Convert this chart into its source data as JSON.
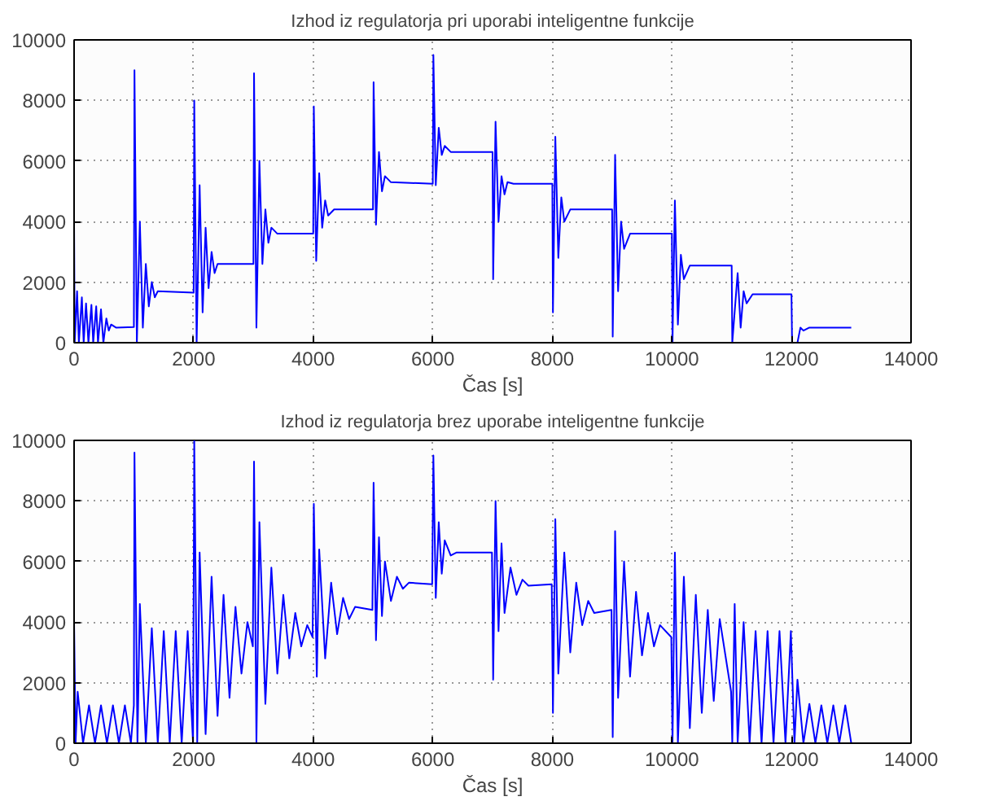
{
  "chart_data": [
    {
      "type": "line",
      "title": "Izhod iz regulatorja pri uporabi inteligentne funkcije",
      "xlabel": "Čas [s]",
      "xlim": [
        0,
        14000
      ],
      "ylim": [
        0,
        10000
      ],
      "xticks": [
        0,
        2000,
        4000,
        6000,
        8000,
        10000,
        12000,
        14000
      ],
      "yticks": [
        0,
        2000,
        4000,
        6000,
        8000,
        10000
      ],
      "grid": true,
      "line_style": "solid",
      "series": [
        {
          "color": "#0000ff",
          "x": [
            0,
            10,
            50,
            80,
            130,
            160,
            200,
            240,
            290,
            320,
            370,
            400,
            450,
            490,
            540,
            580,
            620,
            700,
            1000,
            1010,
            1050,
            1100,
            1150,
            1200,
            1250,
            1300,
            1350,
            1400,
            2000,
            2010,
            2050,
            2100,
            2150,
            2200,
            2250,
            2300,
            2350,
            2400,
            3000,
            3010,
            3050,
            3100,
            3150,
            3200,
            3250,
            3300,
            3400,
            4000,
            4010,
            4050,
            4100,
            4150,
            4200,
            4250,
            4350,
            5000,
            5010,
            5050,
            5100,
            5150,
            5200,
            5300,
            6000,
            6010,
            6050,
            6100,
            6150,
            6200,
            6300,
            7000,
            7010,
            7050,
            7100,
            7150,
            7200,
            7250,
            7350,
            8000,
            8010,
            8050,
            8100,
            8150,
            8200,
            8300,
            9000,
            9010,
            9050,
            9100,
            9150,
            9200,
            9300,
            10000,
            10010,
            10050,
            10100,
            10150,
            10200,
            10300,
            11000,
            11010,
            11100,
            11150,
            11200,
            11250,
            11350,
            12000,
            12010,
            12100,
            12150,
            12200,
            12300,
            13000
          ],
          "values": [
            4000,
            0,
            1700,
            0,
            1500,
            0,
            1300,
            0,
            1250,
            0,
            1200,
            0,
            1100,
            0,
            800,
            400,
            600,
            500,
            520,
            9000,
            0,
            4000,
            500,
            2600,
            1200,
            2000,
            1500,
            1700,
            1650,
            8000,
            0,
            5200,
            1000,
            3800,
            1800,
            3000,
            2300,
            2600,
            2600,
            8900,
            500,
            6000,
            2600,
            4400,
            3300,
            3800,
            3600,
            3600,
            7800,
            2700,
            5600,
            3800,
            4700,
            4200,
            4400,
            4400,
            8600,
            3900,
            6300,
            5000,
            5500,
            5300,
            5250,
            9500,
            5200,
            7100,
            6200,
            6500,
            6300,
            6300,
            2100,
            7300,
            4000,
            5500,
            4900,
            5300,
            5250,
            5250,
            1000,
            6800,
            2800,
            4800,
            4000,
            4400,
            4400,
            200,
            6200,
            1700,
            4000,
            3100,
            3600,
            3600,
            0,
            4700,
            600,
            2900,
            2100,
            2550,
            2550,
            0,
            2300,
            500,
            1700,
            1300,
            1600,
            1600,
            0,
            0,
            500,
            400,
            500,
            500
          ]
        }
      ]
    },
    {
      "type": "line",
      "title": "Izhod iz regulatorja brez uporabe inteligentne funkcije",
      "xlabel": "Čas [s]",
      "xlim": [
        0,
        14000
      ],
      "ylim": [
        0,
        10000
      ],
      "xticks": [
        0,
        2000,
        4000,
        6000,
        8000,
        10000,
        12000,
        14000
      ],
      "yticks": [
        0,
        2000,
        4000,
        6000,
        8000,
        10000
      ],
      "grid": true,
      "line_style": "solid",
      "series": [
        {
          "color": "#0000ff",
          "x": [
            0,
            25,
            60,
            150,
            250,
            350,
            450,
            550,
            650,
            750,
            850,
            950,
            1000,
            1010,
            1060,
            1100,
            1200,
            1300,
            1400,
            1500,
            1600,
            1700,
            1800,
            1900,
            1990,
            2010,
            2060,
            2100,
            2200,
            2300,
            2400,
            2500,
            2600,
            2700,
            2800,
            2900,
            2990,
            3010,
            3050,
            3100,
            3200,
            3300,
            3400,
            3500,
            3600,
            3700,
            3800,
            3900,
            3990,
            4010,
            4060,
            4100,
            4200,
            4300,
            4400,
            4500,
            4600,
            4700,
            4990,
            5010,
            5050,
            5100,
            5150,
            5200,
            5300,
            5400,
            5500,
            5600,
            5990,
            6010,
            6050,
            6100,
            6150,
            6200,
            6300,
            6400,
            6990,
            7010,
            7050,
            7100,
            7150,
            7200,
            7300,
            7400,
            7500,
            7600,
            7990,
            8010,
            8050,
            8100,
            8200,
            8300,
            8400,
            8500,
            8600,
            8700,
            8990,
            9010,
            9050,
            9100,
            9200,
            9300,
            9400,
            9500,
            9600,
            9700,
            9800,
            9990,
            10010,
            10050,
            10100,
            10200,
            10300,
            10400,
            10500,
            10600,
            10700,
            10800,
            10990,
            11010,
            11050,
            11100,
            11200,
            11300,
            11400,
            11500,
            11600,
            11700,
            11800,
            11900,
            11990,
            12050,
            12100,
            12200,
            12300,
            12400,
            12500,
            12600,
            12700,
            12800,
            12900,
            13000
          ],
          "values": [
            4000,
            0,
            1700,
            0,
            1250,
            0,
            1250,
            0,
            1250,
            0,
            1250,
            0,
            1250,
            9600,
            0,
            4600,
            0,
            3800,
            0,
            3700,
            0,
            3700,
            0,
            3700,
            0,
            10000,
            0,
            6300,
            300,
            5500,
            900,
            4900,
            1500,
            4500,
            2300,
            4000,
            3200,
            9300,
            0,
            7300,
            1300,
            5800,
            2300,
            4900,
            2800,
            4300,
            3200,
            3900,
            3500,
            7900,
            2200,
            6400,
            2800,
            5300,
            3600,
            4800,
            4100,
            4500,
            4400,
            8600,
            3400,
            6800,
            4200,
            6000,
            4700,
            5500,
            5100,
            5300,
            5250,
            9500,
            4800,
            7300,
            5600,
            6700,
            6200,
            6300,
            6300,
            2100,
            8000,
            3700,
            6600,
            4300,
            5800,
            4900,
            5400,
            5200,
            5250,
            1000,
            7400,
            2300,
            6300,
            3000,
            5300,
            3900,
            4700,
            4300,
            4400,
            200,
            7000,
            1500,
            6000,
            2200,
            5000,
            2900,
            4300,
            3200,
            3900,
            3500,
            0,
            6300,
            0,
            5500,
            500,
            4900,
            1000,
            4400,
            1400,
            4100,
            1700,
            0,
            4600,
            0,
            4000,
            0,
            3700,
            0,
            3700,
            0,
            3700,
            0,
            3700,
            0,
            2100,
            0,
            1300,
            0,
            1250,
            0,
            1250,
            0,
            1250,
            0
          ]
        }
      ]
    }
  ]
}
